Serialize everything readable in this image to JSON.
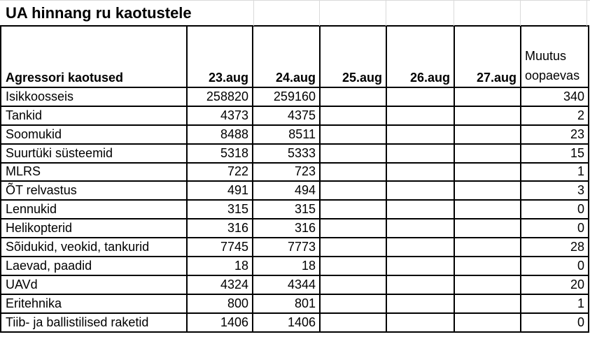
{
  "title": "UA hinnang ru kaotustele",
  "colors": {
    "background": "#ffffff",
    "text": "#000000",
    "table_border": "#000000",
    "sheet_gridline": "#d9d9d9"
  },
  "table": {
    "columns": [
      {
        "key": "label",
        "label": "Agressori kaotused",
        "align": "left",
        "bold": true
      },
      {
        "key": "aug23",
        "label": "23.aug",
        "align": "right",
        "bold": true
      },
      {
        "key": "aug24",
        "label": "24.aug",
        "align": "right",
        "bold": true
      },
      {
        "key": "aug25",
        "label": "25.aug",
        "align": "right",
        "bold": true
      },
      {
        "key": "aug26",
        "label": "26.aug",
        "align": "right",
        "bold": true
      },
      {
        "key": "aug27",
        "label": "27.aug",
        "align": "right",
        "bold": true
      },
      {
        "key": "change",
        "label": "Muutus oopaevas",
        "align": "left",
        "bold": false
      }
    ],
    "rows": [
      {
        "label": "Isikkoosseis",
        "values": [
          "258820",
          "259160",
          "",
          "",
          "",
          "340"
        ]
      },
      {
        "label": "Tankid",
        "values": [
          "4373",
          "4375",
          "",
          "",
          "",
          "2"
        ]
      },
      {
        "label": "Soomukid",
        "values": [
          "8488",
          "8511",
          "",
          "",
          "",
          "23"
        ]
      },
      {
        "label": "Suurtüki süsteemid",
        "values": [
          "5318",
          "5333",
          "",
          "",
          "",
          "15"
        ]
      },
      {
        "label": "MLRS",
        "values": [
          "722",
          "723",
          "",
          "",
          "",
          "1"
        ]
      },
      {
        "label": "ÕT relvastus",
        "values": [
          "491",
          "494",
          "",
          "",
          "",
          "3"
        ]
      },
      {
        "label": "Lennukid",
        "values": [
          "315",
          "315",
          "",
          "",
          "",
          "0"
        ]
      },
      {
        "label": "Helikopterid",
        "values": [
          "316",
          "316",
          "",
          "",
          "",
          "0"
        ]
      },
      {
        "label": "Sõidukid, veokid, tankurid",
        "values": [
          "7745",
          "7773",
          "",
          "",
          "",
          "28"
        ]
      },
      {
        "label": "Laevad, paadid",
        "values": [
          "18",
          "18",
          "",
          "",
          "",
          "0"
        ]
      },
      {
        "label": "UAVd",
        "values": [
          "4324",
          "4344",
          "",
          "",
          "",
          "20"
        ]
      },
      {
        "label": "Eritehnika",
        "values": [
          "800",
          "801",
          "",
          "",
          "",
          "1"
        ]
      },
      {
        "label": "Tiib- ja ballistilised raketid",
        "values": [
          "1406",
          "1406",
          "",
          "",
          "",
          "0"
        ]
      }
    ]
  }
}
